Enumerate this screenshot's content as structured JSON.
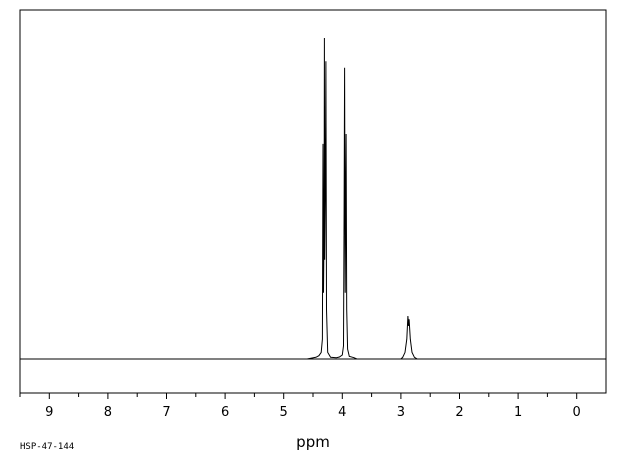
{
  "chart_data": {
    "type": "line",
    "title": "",
    "xlabel": "ppm",
    "ylabel": "",
    "xlim": [
      9.5,
      -0.5
    ],
    "x_reversed": true,
    "ylim": [
      -0.08,
      1.0
    ],
    "grid": false,
    "x_ticks": [
      9,
      8,
      7,
      6,
      5,
      4,
      3,
      2,
      1,
      0
    ],
    "x_tick_labels": [
      "9",
      "8",
      "7",
      "6",
      "5",
      "4",
      "3",
      "2",
      "1",
      "0"
    ],
    "sample_code": "HSP-47-144",
    "peaks": [
      {
        "ppm": 4.33,
        "height": 0.65
      },
      {
        "ppm": 4.305,
        "height": 0.97
      },
      {
        "ppm": 4.28,
        "height": 0.9
      },
      {
        "ppm": 3.96,
        "height": 0.88
      },
      {
        "ppm": 3.935,
        "height": 0.68
      },
      {
        "ppm": 2.88,
        "height": 0.13
      },
      {
        "ppm": 2.86,
        "height": 0.12
      }
    ],
    "series": [
      {
        "values": [
          [
            9.5,
            0.0
          ],
          [
            4.6,
            0.0
          ],
          [
            4.45,
            0.005
          ],
          [
            4.4,
            0.01
          ],
          [
            4.36,
            0.02
          ],
          [
            4.34,
            0.06
          ],
          [
            4.33,
            0.65
          ],
          [
            4.32,
            0.2
          ],
          [
            4.31,
            0.4
          ],
          [
            4.305,
            0.97
          ],
          [
            4.3,
            0.3
          ],
          [
            4.29,
            0.5
          ],
          [
            4.28,
            0.9
          ],
          [
            4.27,
            0.15
          ],
          [
            4.25,
            0.02
          ],
          [
            4.2,
            0.005
          ],
          [
            4.1,
            0.004
          ],
          [
            4.05,
            0.006
          ],
          [
            4.0,
            0.012
          ],
          [
            3.98,
            0.04
          ],
          [
            3.97,
            0.45
          ],
          [
            3.96,
            0.88
          ],
          [
            3.95,
            0.2
          ],
          [
            3.935,
            0.68
          ],
          [
            3.925,
            0.15
          ],
          [
            3.91,
            0.03
          ],
          [
            3.88,
            0.008
          ],
          [
            3.8,
            0.004
          ],
          [
            3.75,
            0.0
          ],
          [
            3.0,
            0.0
          ],
          [
            2.97,
            0.005
          ],
          [
            2.93,
            0.02
          ],
          [
            2.9,
            0.06
          ],
          [
            2.88,
            0.13
          ],
          [
            2.87,
            0.1
          ],
          [
            2.86,
            0.12
          ],
          [
            2.84,
            0.06
          ],
          [
            2.81,
            0.02
          ],
          [
            2.77,
            0.005
          ],
          [
            2.72,
            0.0
          ],
          [
            -0.5,
            0.0
          ]
        ]
      }
    ]
  }
}
